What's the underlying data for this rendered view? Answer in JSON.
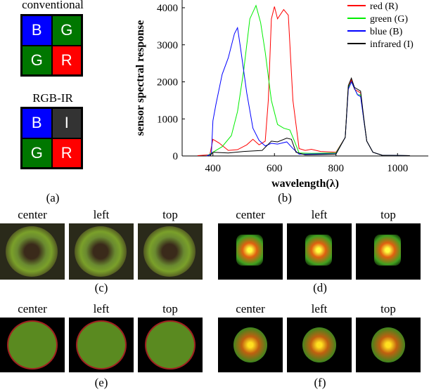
{
  "panel_a": {
    "conventional_title": "conventional",
    "rgbir_title": "RGB-IR",
    "conventional_cells": [
      {
        "label": "B",
        "color": "#0000ff"
      },
      {
        "label": "G",
        "color": "#007700"
      },
      {
        "label": "G",
        "color": "#007700"
      },
      {
        "label": "R",
        "color": "#ff0000"
      }
    ],
    "rgbir_cells": [
      {
        "label": "B",
        "color": "#0000ff"
      },
      {
        "label": "I",
        "color": "#333333"
      },
      {
        "label": "G",
        "color": "#007700"
      },
      {
        "label": "R",
        "color": "#ff0000"
      }
    ],
    "caption": "(a)"
  },
  "panel_b_caption": "(b)",
  "chart_data": {
    "type": "line",
    "xlabel": "wavelength(λ)",
    "ylabel": "sensor spectral response",
    "xlim": [
      300,
      1100
    ],
    "ylim": [
      0,
      4100
    ],
    "xticks": [
      400,
      600,
      800,
      1000
    ],
    "yticks": [
      0,
      1000,
      2000,
      3000,
      4000
    ],
    "grid": false,
    "legend": "top-right",
    "series": [
      {
        "name": "red (R)",
        "color": "#ff0000",
        "x": [
          350,
          390,
          400,
          420,
          450,
          480,
          510,
          530,
          550,
          570,
          580,
          590,
          600,
          610,
          630,
          645,
          660,
          680,
          700,
          720,
          750,
          800,
          830,
          840,
          850,
          860,
          880,
          890,
          900,
          920,
          950,
          1040
        ],
        "y": [
          10,
          30,
          450,
          350,
          150,
          170,
          300,
          450,
          300,
          400,
          1500,
          3700,
          4030,
          3700,
          3950,
          3800,
          1500,
          200,
          150,
          180,
          120,
          100,
          500,
          1850,
          2050,
          1800,
          1700,
          1000,
          400,
          100,
          20,
          10
        ]
      },
      {
        "name": "green (G)",
        "color": "#00ee00",
        "x": [
          380,
          400,
          430,
          460,
          480,
          500,
          520,
          540,
          555,
          570,
          590,
          610,
          630,
          650,
          665,
          680,
          720,
          800,
          830,
          840,
          850,
          870,
          880,
          890,
          900,
          920,
          950,
          1040
        ],
        "y": [
          0,
          100,
          250,
          550,
          1200,
          2300,
          3700,
          4060,
          3600,
          2800,
          1500,
          850,
          750,
          700,
          400,
          80,
          70,
          80,
          500,
          1850,
          2000,
          1650,
          1650,
          1000,
          400,
          100,
          20,
          10
        ]
      },
      {
        "name": "blue (B)",
        "color": "#0000ff",
        "x": [
          380,
          395,
          400,
          410,
          430,
          450,
          470,
          480,
          490,
          510,
          530,
          550,
          570,
          590,
          610,
          640,
          660,
          680,
          800,
          830,
          840,
          850,
          870,
          880,
          890,
          900,
          920,
          950,
          1040
        ],
        "y": [
          0,
          50,
          950,
          1400,
          2200,
          2650,
          3300,
          3460,
          2900,
          1700,
          750,
          420,
          270,
          340,
          320,
          380,
          200,
          50,
          60,
          500,
          1800,
          2000,
          1650,
          1600,
          1000,
          400,
          100,
          20,
          10
        ]
      },
      {
        "name": "infrared (I)",
        "color": "#000000",
        "x": [
          390,
          400,
          450,
          500,
          560,
          590,
          610,
          640,
          655,
          670,
          700,
          800,
          830,
          840,
          850,
          860,
          880,
          890,
          900,
          920,
          950,
          1040
        ],
        "y": [
          0,
          100,
          80,
          120,
          150,
          400,
          380,
          480,
          450,
          100,
          30,
          50,
          500,
          1900,
          2100,
          1850,
          1750,
          1050,
          400,
          100,
          20,
          10
        ]
      }
    ]
  },
  "view_labels": [
    "center",
    "left",
    "top"
  ],
  "captions": {
    "c": "(c)",
    "d": "(d)",
    "e": "(e)",
    "f": "(f)"
  }
}
